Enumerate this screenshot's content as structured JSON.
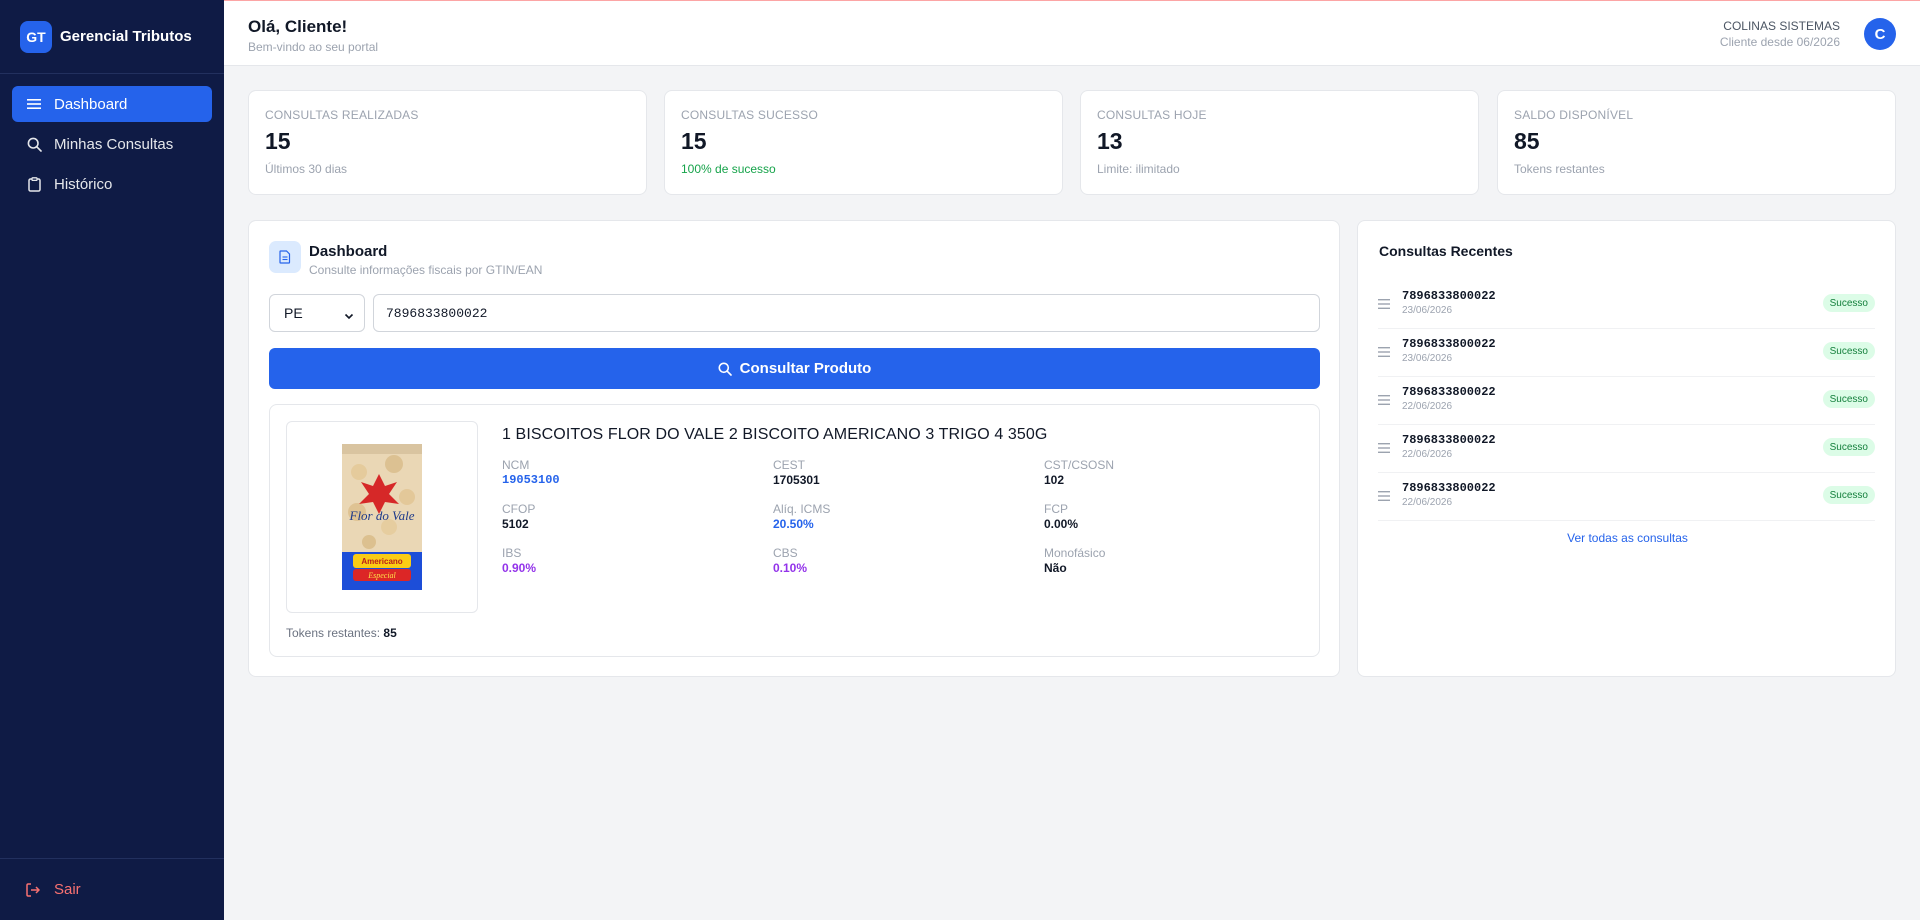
{
  "brand": {
    "logo": "GT",
    "name": "Gerencial Tributos"
  },
  "sidebar": {
    "items": [
      {
        "label": "Dashboard",
        "icon": "menu-icon",
        "active": true
      },
      {
        "label": "Minhas Consultas",
        "icon": "search-icon"
      },
      {
        "label": "Histórico",
        "icon": "clipboard-icon"
      }
    ],
    "logout_label": "Sair"
  },
  "header": {
    "greeting": "Olá, Cliente!",
    "subtitle": "Bem-vindo ao seu portal",
    "company": "COLINAS SISTEMAS",
    "client_since": "Cliente desde 06/2026",
    "avatar_letter": "C"
  },
  "stats": [
    {
      "label": "CONSULTAS REALIZADAS",
      "value": "15",
      "note": "Últimos 30 dias"
    },
    {
      "label": "CONSULTAS SUCESSO",
      "value": "15",
      "note": "100% de sucesso"
    },
    {
      "label": "CONSULTAS HOJE",
      "value": "13",
      "note": "Limite: ilimitado"
    },
    {
      "label": "SALDO DISPONÍVEL",
      "value": "85",
      "note": "Tokens restantes"
    }
  ],
  "panel": {
    "title": "Dashboard",
    "subtitle": "Consulte informações fiscais por GTIN/EAN",
    "uf_selected": "PE",
    "gtin_value": "7896833800022",
    "button_label": "Consultar Produto"
  },
  "product": {
    "name": "1 BISCOITOS FLOR DO VALE 2 BISCOITO AMERICANO 3 TRIGO 4 350G",
    "image_brand": "Flor do Vale",
    "image_label1": "Americano",
    "image_label2": "Especial",
    "attrs": {
      "ncm": {
        "label": "NCM",
        "value": "19053100"
      },
      "cest": {
        "label": "CEST",
        "value": "1705301"
      },
      "cst": {
        "label": "CST/CSOSN",
        "value": "102"
      },
      "cfop": {
        "label": "CFOP",
        "value": "5102"
      },
      "icms": {
        "label": "Alíq. ICMS",
        "value": "20.50%"
      },
      "fcp": {
        "label": "FCP",
        "value": "0.00%"
      },
      "ibs": {
        "label": "IBS",
        "value": "0.90%"
      },
      "cbs": {
        "label": "CBS",
        "value": "0.10%"
      },
      "mono": {
        "label": "Monofásico",
        "value": "Não"
      }
    },
    "tokens_label": "Tokens restantes:",
    "tokens_value": "85"
  },
  "recent": {
    "title": "Consultas Recentes",
    "items": [
      {
        "code": "7896833800022",
        "date": "23/06/2026",
        "status": "Sucesso"
      },
      {
        "code": "7896833800022",
        "date": "23/06/2026",
        "status": "Sucesso"
      },
      {
        "code": "7896833800022",
        "date": "22/06/2026",
        "status": "Sucesso"
      },
      {
        "code": "7896833800022",
        "date": "22/06/2026",
        "status": "Sucesso"
      },
      {
        "code": "7896833800022",
        "date": "22/06/2026",
        "status": "Sucesso"
      }
    ],
    "see_all": "Ver todas as consultas"
  },
  "colors": {
    "sidebar_bg": "#0f1b45",
    "accent": "#2563eb",
    "success": "#16a34a",
    "purple": "#9333ea",
    "danger": "#f87171"
  }
}
